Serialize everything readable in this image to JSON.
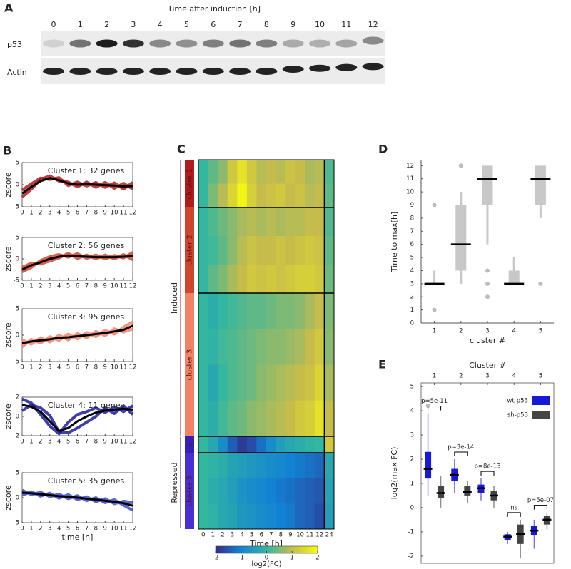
{
  "panel_labels": [
    "A",
    "B",
    "C",
    "D",
    "E"
  ],
  "blot": {
    "title": "Time after induction [h]",
    "lanes": [
      0,
      1,
      2,
      3,
      4,
      5,
      6,
      7,
      8,
      9,
      10,
      11,
      12
    ],
    "rows": [
      "p53",
      "Actin"
    ]
  },
  "chart_data": [
    {
      "type": "line",
      "title": "Cluster 1: 32 genes",
      "ylabel": "zscore",
      "x": [
        0,
        1,
        2,
        3,
        4,
        5,
        6,
        7,
        8,
        9,
        10,
        11,
        12
      ],
      "xlim": [
        0,
        12
      ],
      "xticks": [
        0,
        1,
        2,
        3,
        4,
        5,
        6,
        7,
        8,
        9,
        10,
        11,
        12
      ],
      "ylim": [
        -5,
        5
      ],
      "yticks": [
        -5,
        0,
        5
      ],
      "series": [
        {
          "color": "#b01c1c",
          "values": [
            -2.8,
            -1,
            1.2,
            2,
            0.8,
            0.6,
            -0.5,
            0.6,
            -0.6,
            0.5,
            -0.8,
            0.3,
            -1
          ]
        },
        {
          "color": "#b01c1c",
          "values": [
            -1.2,
            0.2,
            1.5,
            1.2,
            1.6,
            -0.2,
            0.6,
            -0.3,
            0.5,
            -0.6,
            0.4,
            -1,
            0.5
          ]
        },
        {
          "color": "#000000",
          "values": [
            -2,
            -0.5,
            0.8,
            1.5,
            1,
            0.3,
            0,
            0.1,
            0,
            -0.1,
            -0.2,
            -0.4,
            -0.3
          ]
        }
      ]
    },
    {
      "type": "line",
      "title": "Cluster 2: 56 genes",
      "ylabel": "zscore",
      "x": [
        0,
        1,
        2,
        3,
        4,
        5,
        6,
        7,
        8,
        9,
        10,
        11,
        12
      ],
      "xlim": [
        0,
        12
      ],
      "xticks": [
        0,
        1,
        2,
        3,
        4,
        5,
        6,
        7,
        8,
        9,
        10,
        11,
        12
      ],
      "ylim": [
        -5,
        5
      ],
      "yticks": [
        -5,
        0,
        5
      ],
      "series": [
        {
          "color": "#d0452f",
          "values": [
            -3,
            -2,
            -0.4,
            0.5,
            1,
            0.4,
            1.2,
            0.1,
            0.9,
            0,
            0.8,
            0.2,
            1.5
          ]
        },
        {
          "color": "#d0452f",
          "values": [
            -2,
            -1,
            -1.2,
            -0.5,
            0.2,
            1.3,
            0.1,
            0.9,
            0,
            0.9,
            0,
            1,
            -0.2
          ]
        },
        {
          "color": "#000000",
          "values": [
            -2.5,
            -1.5,
            -0.8,
            0,
            0.5,
            0.8,
            0.6,
            0.5,
            0.4,
            0.4,
            0.4,
            0.5,
            0.6
          ]
        }
      ]
    },
    {
      "type": "line",
      "title": "Cluster 3: 95 genes",
      "ylabel": "zscore",
      "x": [
        0,
        1,
        2,
        3,
        4,
        5,
        6,
        7,
        8,
        9,
        10,
        11,
        12
      ],
      "xlim": [
        0,
        12
      ],
      "xticks": [
        0,
        1,
        2,
        3,
        4,
        5,
        6,
        7,
        8,
        9,
        10,
        11,
        12
      ],
      "ylim": [
        -5,
        5
      ],
      "yticks": [
        -5,
        0,
        5
      ],
      "series": [
        {
          "color": "#f28266",
          "values": [
            -2.2,
            -0.8,
            -1.5,
            -0.3,
            -1,
            0.2,
            -0.7,
            0.5,
            -0.3,
            0.9,
            0.2,
            1.5,
            2.5
          ]
        },
        {
          "color": "#f28266",
          "values": [
            -0.9,
            -1.7,
            -0.5,
            -1.3,
            0,
            -0.9,
            0.3,
            -0.5,
            0.7,
            -0.1,
            1.2,
            0.6,
            1.2
          ]
        },
        {
          "color": "#000000",
          "values": [
            -1.5,
            -1.2,
            -1,
            -0.8,
            -0.5,
            -0.4,
            -0.2,
            0,
            0.2,
            0.4,
            0.7,
            1,
            1.8
          ]
        }
      ]
    },
    {
      "type": "line",
      "title": "Cluster 4: 11 genes",
      "ylabel": "zscore",
      "x": [
        0,
        1,
        2,
        3,
        4,
        5,
        6,
        7,
        8,
        9,
        10,
        11,
        12
      ],
      "xlim": [
        0,
        12
      ],
      "xticks": [
        0,
        1,
        2,
        3,
        4,
        5,
        6,
        7,
        8,
        9,
        10,
        11,
        12
      ],
      "ylim": [
        -2,
        2
      ],
      "yticks": [
        -2,
        0,
        2
      ],
      "series": [
        {
          "color": "#1c1c9e",
          "values": [
            1.8,
            1.4,
            0.2,
            -1,
            -1.8,
            -0.6,
            0.2,
            0.5,
            0.9,
            0.4,
            1,
            0.5,
            1.1
          ]
        },
        {
          "color": "#1c1c9e",
          "values": [
            0.6,
            1.2,
            0.9,
            0.1,
            -1.6,
            -1.7,
            -1.2,
            -0.6,
            0,
            0.9,
            0.3,
            1.1,
            0.2
          ]
        },
        {
          "color": "#000000",
          "values": [
            1.2,
            1,
            0.5,
            -0.5,
            -1.5,
            -1.2,
            -0.5,
            0,
            0.4,
            0.6,
            0.7,
            0.8,
            0.7
          ]
        }
      ]
    },
    {
      "type": "line",
      "title": "Cluster 5: 35 genes",
      "ylabel": "zscore",
      "xlabel": "time [h]",
      "x": [
        0,
        1,
        2,
        3,
        4,
        5,
        6,
        7,
        8,
        9,
        10,
        11,
        12
      ],
      "xlim": [
        0,
        12
      ],
      "xticks": [
        0,
        1,
        2,
        3,
        4,
        5,
        6,
        7,
        8,
        9,
        10,
        11,
        12
      ],
      "ylim": [
        -5,
        5
      ],
      "yticks": [
        -5,
        0,
        5
      ],
      "series": [
        {
          "color": "#3b4fc4",
          "values": [
            1.5,
            0.6,
            1.1,
            0.2,
            0.7,
            -0.2,
            0.4,
            -0.6,
            0,
            -1,
            -0.4,
            -1.5,
            -2.5
          ]
        },
        {
          "color": "#3b4fc4",
          "values": [
            0.5,
            1.2,
            0.3,
            0.9,
            -0.1,
            0.6,
            -0.4,
            0.2,
            -0.8,
            -0.2,
            -1.2,
            -0.7,
            -1
          ]
        },
        {
          "color": "#000000",
          "values": [
            1,
            0.9,
            0.7,
            0.5,
            0.3,
            0.2,
            0,
            -0.2,
            -0.4,
            -0.6,
            -0.8,
            -1.1,
            -1.6
          ]
        }
      ]
    },
    {
      "type": "heatmap",
      "xlabel": "Time [h]",
      "x": [
        0,
        1,
        2,
        3,
        4,
        5,
        6,
        7,
        8,
        9,
        10,
        11,
        12,
        24
      ],
      "colorbar": {
        "lim": [
          -2,
          2
        ],
        "ticks": [
          -2,
          -1,
          0,
          1,
          2
        ],
        "label": "log2(FC)"
      },
      "groups": [
        {
          "label": "Induced",
          "clusters": [
            {
              "label": "cluster 1",
              "color": "#b01c1c",
              "rows": [
                [
                  0,
                  0.3,
                  0.6,
                  1.2,
                  1.6,
                  1.2,
                  0.9,
                  1,
                  0.9,
                  1.1,
                  1,
                  0.8,
                  0.9,
                  0.2
                ],
                [
                  0,
                  0.5,
                  0.9,
                  1.4,
                  1.9,
                  1.3,
                  1,
                  1.1,
                  1.2,
                  1,
                  1.1,
                  0.9,
                  1,
                  0.3
                ]
              ]
            },
            {
              "label": "cluster 2",
              "color": "#d0452f",
              "rows": [
                [
                  0,
                  0.2,
                  0.4,
                  0.6,
                  0.8,
                  0.9,
                  0.8,
                  0.9,
                  0.8,
                  0.9,
                  0.9,
                  1,
                  1,
                  0.2
                ],
                [
                  0,
                  0.1,
                  0.3,
                  0.6,
                  0.9,
                  1.1,
                  1,
                  1,
                  1.1,
                  1,
                  1.1,
                  1.2,
                  1.1,
                  0.3
                ],
                [
                  0,
                  0.3,
                  0.5,
                  0.8,
                  1,
                  1.2,
                  1.1,
                  1.2,
                  1.1,
                  1.2,
                  1.3,
                  1.3,
                  1.2,
                  0.4
                ]
              ]
            },
            {
              "label": "cluster 3",
              "color": "#f28266",
              "rows": [
                [
                  0,
                  -0.2,
                  0,
                  0.1,
                  0.2,
                  0.3,
                  0.3,
                  0.4,
                  0.5,
                  0.5,
                  0.6,
                  0.8,
                  1,
                  0.5
                ],
                [
                  0,
                  -0.1,
                  0.1,
                  0.2,
                  0.3,
                  0.4,
                  0.5,
                  0.6,
                  0.6,
                  0.7,
                  0.8,
                  1,
                  1.2,
                  0.6
                ],
                [
                  0,
                  -0.3,
                  0,
                  0.2,
                  0.3,
                  0.4,
                  0.6,
                  0.7,
                  0.8,
                  0.9,
                  1,
                  1.1,
                  1.4,
                  0.8
                ],
                [
                  0,
                  -0.2,
                  0.1,
                  0.3,
                  0.4,
                  0.6,
                  0.7,
                  0.8,
                  0.9,
                  1,
                  1.2,
                  1.3,
                  1.6,
                  1
                ]
              ]
            }
          ]
        },
        {
          "label": "Repressed",
          "clusters": [
            {
              "label": "4",
              "color": "#3520b8",
              "rows": [
                [
                  0,
                  -0.3,
                  -0.8,
                  -1.4,
                  -1.8,
                  -1.6,
                  -1.2,
                  -0.8,
                  -0.5,
                  -0.3,
                  -0.2,
                  -0.1,
                  0,
                  1.2
                ]
              ]
            },
            {
              "label": "cluster 5",
              "color": "#4a2fd0",
              "rows": [
                [
                  0,
                  -0.1,
                  -0.2,
                  -0.4,
                  -0.5,
                  -0.6,
                  -0.7,
                  -0.8,
                  -0.9,
                  -1,
                  -1.1,
                  -1.2,
                  -1.3,
                  -0.3
                ],
                [
                  0,
                  -0.2,
                  -0.3,
                  -0.5,
                  -0.7,
                  -0.8,
                  -0.9,
                  -1,
                  -1.1,
                  -1.2,
                  -1.3,
                  -1.4,
                  -1.5,
                  -0.4
                ],
                [
                  0,
                  -0.1,
                  -0.3,
                  -0.4,
                  -0.6,
                  -0.7,
                  -0.8,
                  -0.9,
                  -1,
                  -1.1,
                  -1.3,
                  -1.4,
                  -1.6,
                  -0.5
                ]
              ]
            }
          ]
        }
      ]
    },
    {
      "type": "box",
      "xlabel": "cluster #",
      "ylabel": "Time to max[h]",
      "categories": [
        1,
        2,
        3,
        4,
        5
      ],
      "ylim": [
        0,
        12.4
      ],
      "yticks": [
        0,
        1,
        2,
        3,
        4,
        5,
        6,
        7,
        8,
        9,
        10,
        11,
        12
      ],
      "frame": false,
      "xaxis_position": "bottom",
      "series": [
        {
          "color": "#c8c8c8",
          "boxes": [
            {
              "whislo": 3,
              "q1": 3,
              "med": 3,
              "q3": 3,
              "whishi": 4,
              "fliers": [
                1,
                9
              ]
            },
            {
              "whislo": 3,
              "q1": 4,
              "med": 6,
              "q3": 9,
              "whishi": 10,
              "fliers": [
                12
              ]
            },
            {
              "whislo": 6,
              "q1": 9,
              "med": 11,
              "q3": 12,
              "whishi": 12,
              "fliers": [
                4,
                3,
                2
              ]
            },
            {
              "whislo": 3,
              "q1": 3,
              "med": 3,
              "q3": 4,
              "whishi": 5,
              "fliers": []
            },
            {
              "whislo": 8,
              "q1": 9,
              "med": 11,
              "q3": 12,
              "whishi": 12,
              "fliers": [
                3
              ]
            }
          ]
        }
      ]
    },
    {
      "type": "box",
      "xlabel": "Cluster #",
      "ylabel": "log2(max FC)",
      "categories": [
        1,
        2,
        3,
        4,
        5
      ],
      "ylim": [
        -2.3,
        5.15
      ],
      "yticks": [
        -2,
        -1,
        0,
        1,
        2,
        3,
        4,
        5
      ],
      "frame": true,
      "xaxis_position": "top",
      "legend": "upper right",
      "annotations": [
        "p=5e-11",
        "p=3e-14",
        "p=8e-13",
        "ns",
        "p=5e-07"
      ],
      "series": [
        {
          "name": "wt-p53",
          "color": "#1818d8",
          "boxes": [
            {
              "whislo": 0.5,
              "q1": 1.2,
              "med": 1.6,
              "q3": 2.3,
              "whishi": 3.9,
              "fliers": [
                4.2
              ]
            },
            {
              "whislo": 0.6,
              "q1": 1.1,
              "med": 1.35,
              "q3": 1.6,
              "whishi": 2,
              "fliers": []
            },
            {
              "whislo": 0.3,
              "q1": 0.6,
              "med": 0.8,
              "q3": 0.95,
              "whishi": 1.2,
              "fliers": []
            },
            {
              "whislo": -1.5,
              "q1": -1.35,
              "med": -1.2,
              "q3": -1.1,
              "whishi": -1,
              "fliers": []
            },
            {
              "whislo": -1.7,
              "q1": -1.15,
              "med": -0.95,
              "q3": -0.75,
              "whishi": -0.5,
              "fliers": []
            }
          ]
        },
        {
          "name": "sh-p53",
          "color": "#444444",
          "boxes": [
            {
              "whislo": 0,
              "q1": 0.4,
              "med": 0.6,
              "q3": 0.9,
              "whishi": 1.3,
              "fliers": []
            },
            {
              "whislo": 0.2,
              "q1": 0.5,
              "med": 0.65,
              "q3": 0.9,
              "whishi": 1.1,
              "fliers": []
            },
            {
              "whislo": 0,
              "q1": 0.3,
              "med": 0.5,
              "q3": 0.7,
              "whishi": 0.9,
              "fliers": []
            },
            {
              "whislo": -2.1,
              "q1": -1.5,
              "med": -1.1,
              "q3": -0.7,
              "whishi": -0.5,
              "fliers": []
            },
            {
              "whislo": -0.9,
              "q1": -0.7,
              "med": -0.5,
              "q3": -0.35,
              "whishi": -0.2,
              "fliers": []
            }
          ]
        }
      ]
    }
  ]
}
